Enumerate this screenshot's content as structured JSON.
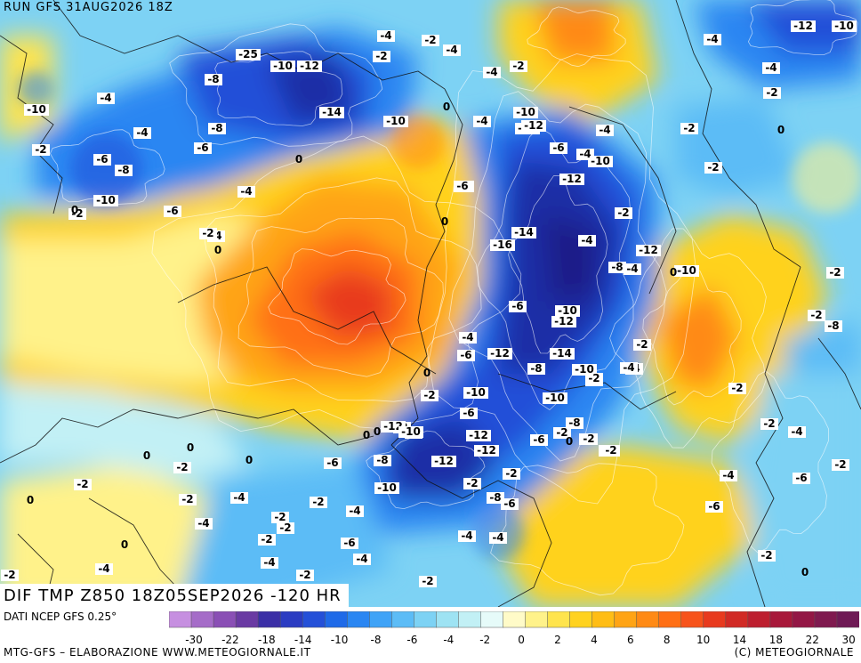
{
  "header": {
    "run": "RUN GFS 31AUG2026 18Z"
  },
  "map": {
    "field": "DIF TMP Z850 18Z05SEP2026 -120 HR",
    "isolines": [
      "-12",
      "-10",
      "-25",
      "-4",
      "-2",
      "-4",
      "-8",
      "-4",
      "-2",
      "-10",
      "-12",
      "-4",
      "-10",
      "-2",
      "-4",
      "-2",
      "-14",
      "-10",
      "-12",
      "-4",
      "-8",
      "-6",
      "-10",
      "-12",
      "-4",
      "-2",
      "-4",
      "-6",
      "-8",
      "-6",
      "-4",
      "-2",
      "-10",
      "-6",
      "-4",
      "-8",
      "-2",
      "-12",
      "-14",
      "-10",
      "-4",
      "-4",
      "-16",
      "-12",
      "-8",
      "-6",
      "-10",
      "-12",
      "-14",
      "-12",
      "-8",
      "-10",
      "-8",
      "-4",
      "-10",
      "-10",
      "-6",
      "-12",
      "-8",
      "-6",
      "-2",
      "-8",
      "-12",
      "-10",
      "-12",
      "-6",
      "-4",
      "-2",
      "-10",
      "-8",
      "-4",
      "-6",
      "-4",
      "-6",
      "-2",
      "-4",
      "-2",
      "-2",
      "-6",
      "-4",
      "-2",
      "-2",
      "-2",
      "-4",
      "-2",
      "-2",
      "-4",
      "-4",
      "-2",
      "-4",
      "-6",
      "-2",
      "-4",
      "-2",
      "-4",
      "-6",
      "-2",
      "-4",
      "-2",
      "-2",
      "-2",
      "-8",
      "-2",
      "-2",
      "-2",
      "-4",
      "-6",
      "-2",
      "-2",
      "-4",
      "-12",
      "-10",
      "-2",
      "-4",
      "-2",
      "-2",
      "-2",
      "-4",
      "-6",
      "-2",
      "-2"
    ],
    "zero_labels": [
      "0",
      "0",
      "0",
      "0",
      "0",
      "0",
      "0",
      "0",
      "0",
      "0",
      "0",
      "0",
      "0",
      "0",
      "0",
      "0",
      "0"
    ]
  },
  "footer": {
    "source": "DATI NCEP GFS 0.25°",
    "credit_left": "MTG-GFS – ELABORAZIONE WWW.METEOGIORNALE.IT",
    "credit_right": "(C) METEOGIORNALE"
  },
  "colorbar": {
    "labels": [
      "-30",
      "-22",
      "-18",
      "-14",
      "-10",
      "-8",
      "-6",
      "-4",
      "-2",
      "0",
      "2",
      "4",
      "6",
      "8",
      "10",
      "14",
      "18",
      "22",
      "30"
    ],
    "colors": [
      "#c68fe0",
      "#a56cc8",
      "#8a4fb5",
      "#6a3aa3",
      "#3b2fa6",
      "#2b3cc2",
      "#2450d8",
      "#1f6ae8",
      "#2a86f2",
      "#3fa3f7",
      "#5cbcf6",
      "#7dd2f4",
      "#9ee3f3",
      "#c2f0f5",
      "#e6fbf9",
      "#fffbc8",
      "#fff28a",
      "#ffe44d",
      "#ffd21f",
      "#ffbd15",
      "#ffa415",
      "#ff8a15",
      "#ff6f15",
      "#f7531b",
      "#e83a1e",
      "#d12a25",
      "#bd1f2f",
      "#a8183a",
      "#931745",
      "#7f1a4f",
      "#6f1a55"
    ]
  },
  "colors": {
    "cold_core": "#1e2fa6",
    "cold": "#2450d8",
    "cool": "#3fa3f7",
    "cold_light": "#7dd2f4",
    "neutral": "#e6fbf9",
    "warm_light": "#fff28a",
    "warm": "#ffd21f",
    "hot": "#ff8a15",
    "hot_core": "#e83a1e"
  }
}
